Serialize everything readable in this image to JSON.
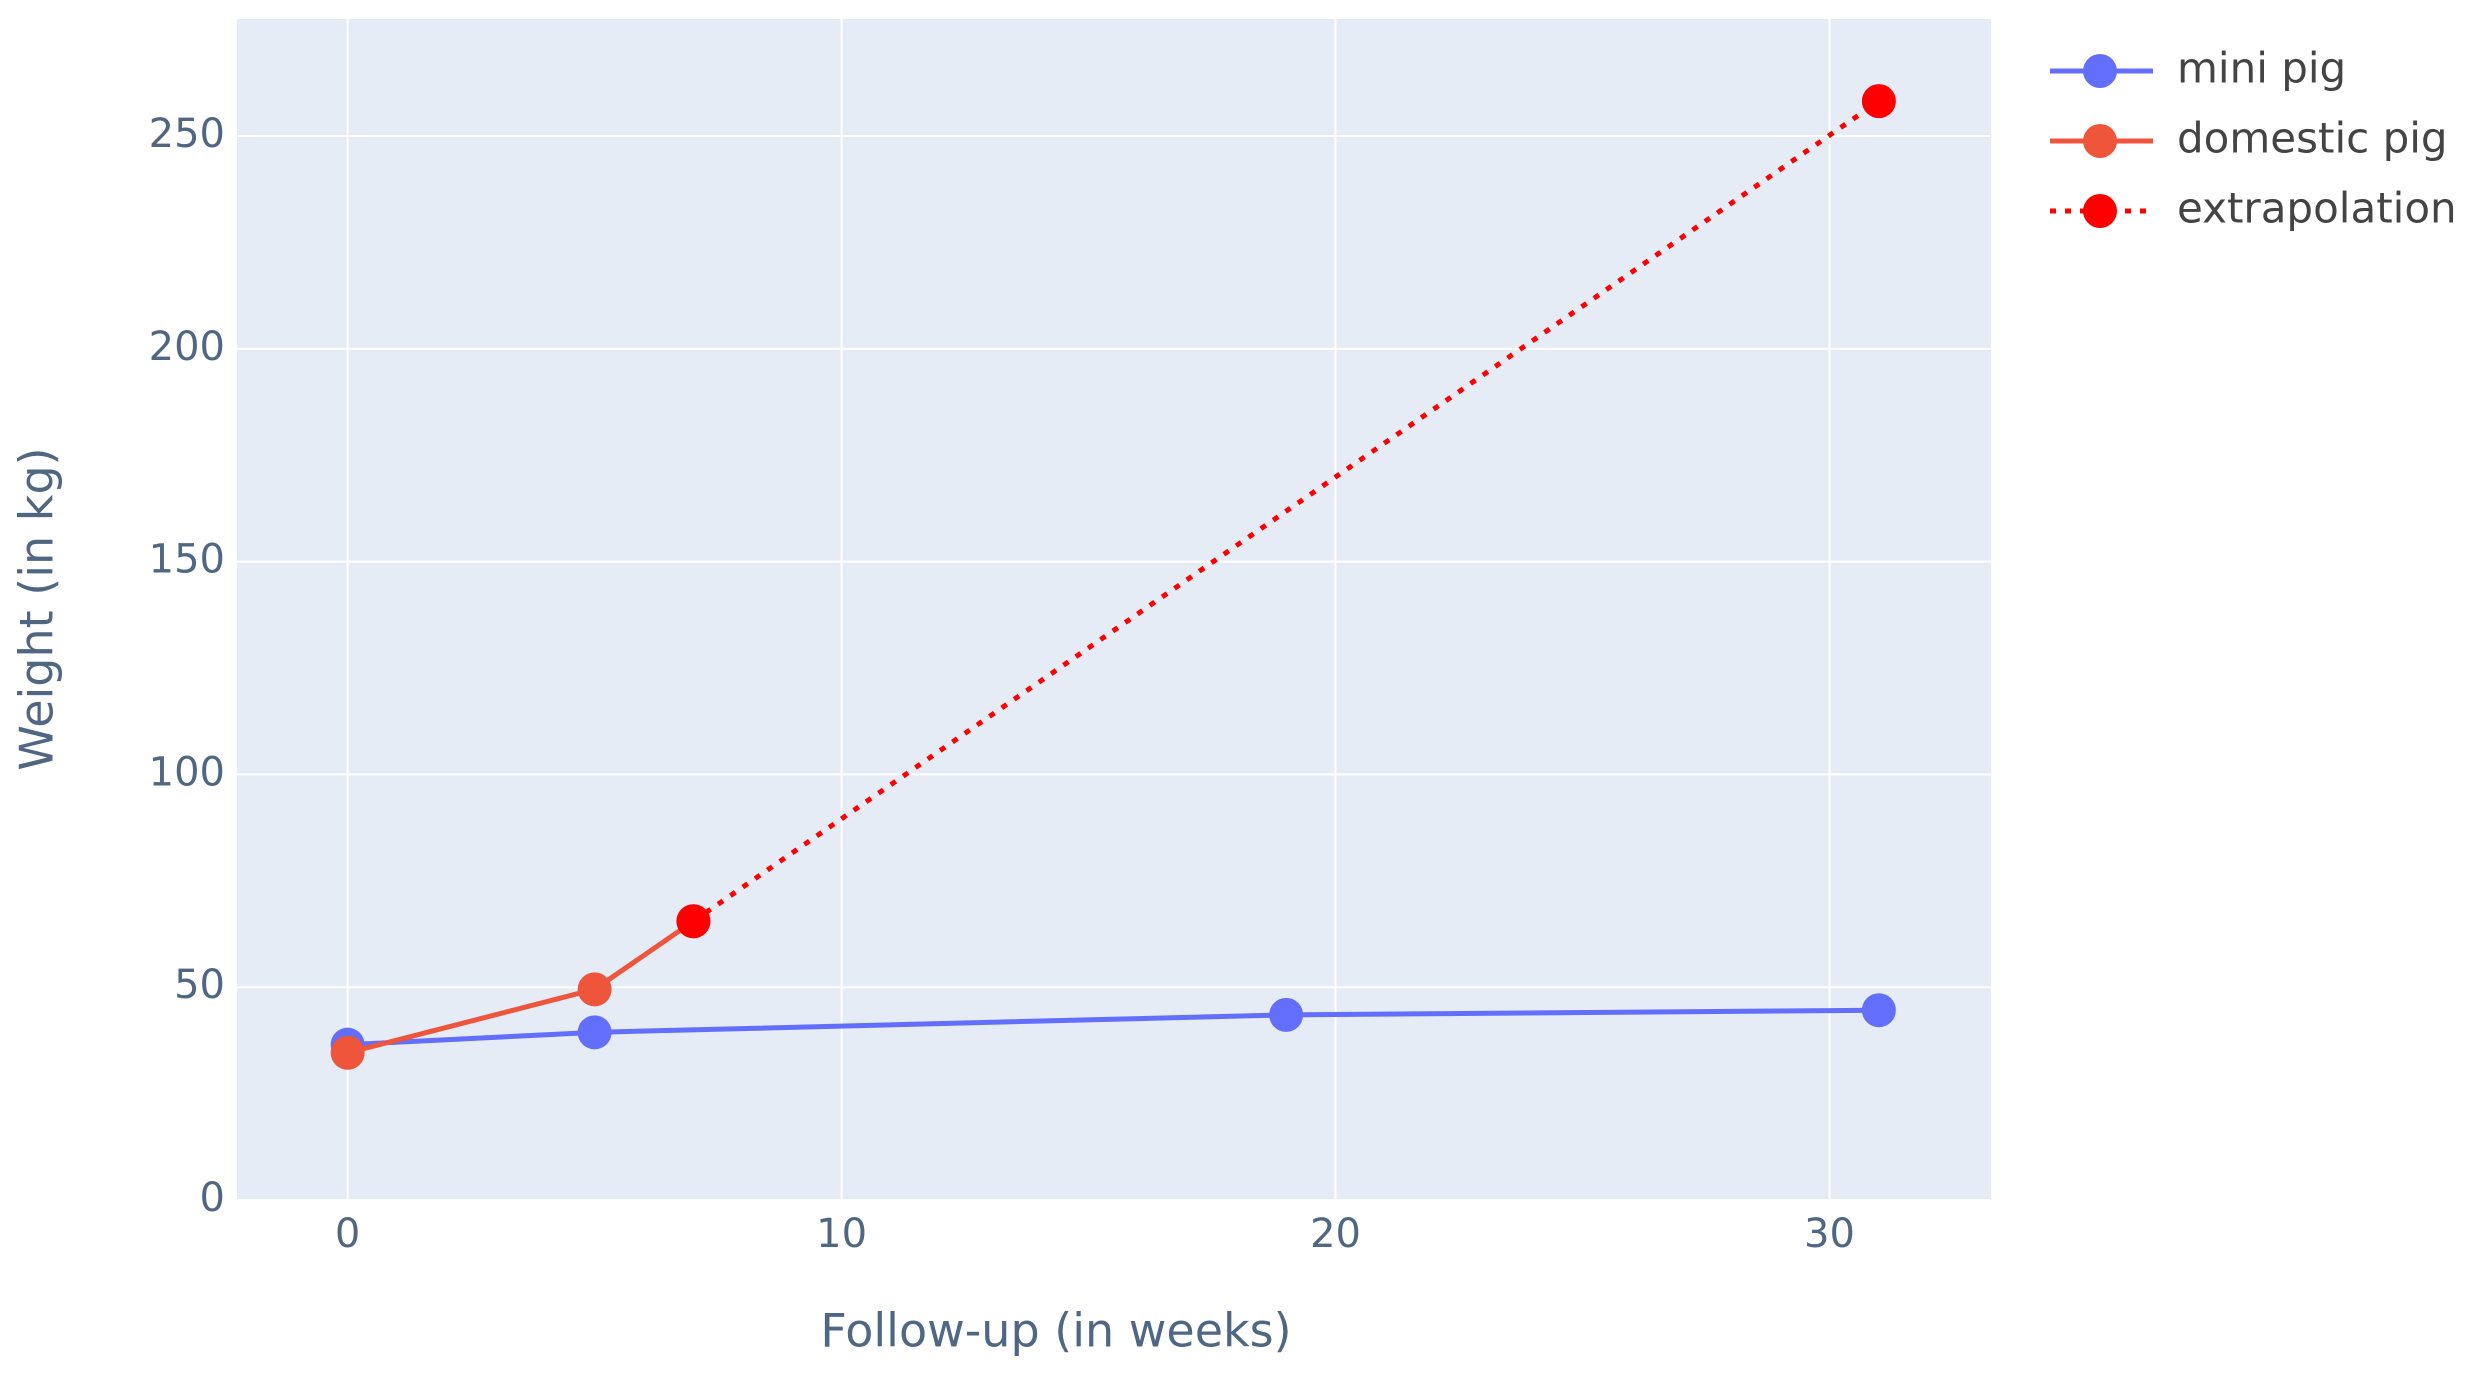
{
  "chart_data": {
    "type": "line",
    "x_label": "Follow-up (in weeks)",
    "y_label": "Weight (in kg)",
    "xlim": [
      -2.24,
      33.27
    ],
    "xticks": [
      0,
      10,
      20,
      30
    ],
    "ylim": [
      0,
      277.5
    ],
    "yticks": [
      0,
      50,
      100,
      150,
      200,
      250
    ],
    "grid": true,
    "legend": "right",
    "series": [
      {
        "name": "mini pig",
        "color": "#636efa",
        "dash": "solid",
        "x": [
          0,
          5,
          19,
          31
        ],
        "values": [
          36.5,
          39.4,
          43.5,
          44.6
        ]
      },
      {
        "name": "domestic pig",
        "color": "#ef553b",
        "dash": "solid",
        "x": [
          0,
          5,
          7
        ],
        "values": [
          34.6,
          49.5,
          65.5
        ]
      },
      {
        "name": "extrapolation",
        "color": "#ff0000",
        "dash": "dot",
        "x": [
          7,
          31
        ],
        "values": [
          65.5,
          258.2
        ]
      }
    ]
  }
}
